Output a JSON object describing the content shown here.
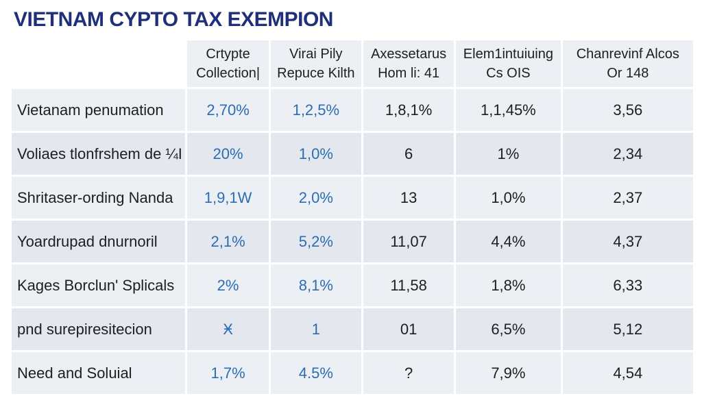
{
  "title": "VIETNAM CYPTO TAX EXEMPION",
  "table": {
    "columns": [
      {
        "line1": "",
        "line2": ""
      },
      {
        "line1": "Crtypte",
        "line2": "Collection|"
      },
      {
        "line1": "Virai Pily",
        "line2": "Repuce Kilth"
      },
      {
        "line1": "Axessetarus",
        "line2": "Hom li: 41"
      },
      {
        "line1": "Elem1intuiuing",
        "line2": "Cs OIS"
      },
      {
        "line1": "Chanrevinf Alcos",
        "line2": "Or 148"
      }
    ],
    "rows": [
      {
        "label": "Vietanam penumation",
        "c1": "2,70%",
        "c2": "1,2,5%",
        "c3": "1,8,1%",
        "c4": "1,1,45%",
        "c5": "3,56"
      },
      {
        "label": "Voliaes tlonfrshem de ¼I",
        "c1": "20%",
        "c2": "1,0%",
        "c3": "6",
        "c4": "1%",
        "c5": "2,34"
      },
      {
        "label": "Shritaser-ording Nanda",
        "c1": "1,9,1W",
        "c2": "2,0%",
        "c3": "13",
        "c4": "1,0%",
        "c5": "2,37"
      },
      {
        "label": "Yoardrupad dnurnoril",
        "c1": "2,1%",
        "c2": "5,2%",
        "c3": "11,07",
        "c4": "4,4%",
        "c5": "4,37"
      },
      {
        "label": "Kages Borclun' Splicals",
        "c1": "2%",
        "c2": "8,1%",
        "c3": "11,58",
        "c4": "1,8%",
        "c5": "6,33"
      },
      {
        "label": "pnd surepiresitecion",
        "c1": "Ӿ",
        "c2": "1",
        "c3": "01",
        "c4": "6,5%",
        "c5": "5,12"
      },
      {
        "label": "Need and Soluial",
        "c1": "1,7%",
        "c2": "4.5%",
        "c3": "?",
        "c4": "7,9%",
        "c5": "4,54"
      }
    ]
  },
  "colors": {
    "title": "#1f2f7a",
    "blue_values": "#2a6db5",
    "cell_bg": "#eceff3"
  }
}
